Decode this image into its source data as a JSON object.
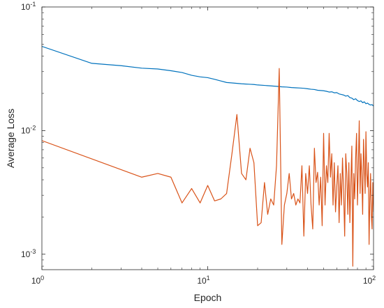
{
  "chart_data": {
    "type": "line",
    "title": "",
    "xlabel": "Epoch",
    "ylabel": "Average Loss",
    "xscale": "log",
    "yscale": "log",
    "xlim": [
      1,
      100
    ],
    "ylim": [
      0.00075,
      0.1
    ],
    "grid": false,
    "legend": "none",
    "x_ticks": [
      {
        "value": 1,
        "base": "10",
        "exp": "0"
      },
      {
        "value": 10,
        "base": "10",
        "exp": "1"
      },
      {
        "value": 100,
        "base": "10",
        "exp": "2"
      }
    ],
    "y_ticks": [
      {
        "value": 0.001,
        "base": "10",
        "exp": "-3"
      },
      {
        "value": 0.01,
        "base": "10",
        "exp": "-2"
      },
      {
        "value": 0.1,
        "base": "10",
        "exp": "-1"
      }
    ],
    "series": [
      {
        "color": "#0072BD",
        "x": [
          1,
          2,
          3,
          4,
          5,
          6,
          7,
          8,
          9,
          10,
          11,
          12,
          13,
          14,
          15,
          16,
          17,
          18,
          19,
          20,
          22,
          24,
          26,
          28,
          30,
          32,
          34,
          36,
          38,
          40,
          42,
          44,
          46,
          48,
          50,
          52,
          54,
          56,
          58,
          60,
          62,
          64,
          66,
          68,
          70,
          72,
          74,
          76,
          78,
          80,
          82,
          84,
          86,
          88,
          90,
          92,
          94,
          96,
          98,
          100
        ],
        "values": [
          0.048,
          0.035,
          0.0335,
          0.032,
          0.0315,
          0.0305,
          0.0295,
          0.028,
          0.0272,
          0.0268,
          0.026,
          0.0252,
          0.0245,
          0.0243,
          0.0241,
          0.0239,
          0.0238,
          0.0237,
          0.0236,
          0.0234,
          0.0232,
          0.023,
          0.0228,
          0.0226,
          0.0225,
          0.0223,
          0.0222,
          0.0221,
          0.022,
          0.0218,
          0.0216,
          0.0215,
          0.0212,
          0.0211,
          0.021,
          0.0208,
          0.0205,
          0.0206,
          0.0202,
          0.0203,
          0.0198,
          0.0196,
          0.0194,
          0.019,
          0.0192,
          0.0185,
          0.0183,
          0.0178,
          0.0181,
          0.0175,
          0.0172,
          0.0174,
          0.0168,
          0.0171,
          0.0165,
          0.0167,
          0.0163,
          0.0161,
          0.0162,
          0.0158
        ]
      },
      {
        "color": "#D95319",
        "x": [
          1,
          4,
          5,
          6,
          7,
          8,
          9,
          10,
          11,
          12,
          13,
          14,
          15,
          16,
          17,
          18,
          19,
          20,
          21,
          22,
          23,
          24,
          25,
          26,
          27,
          28,
          29,
          30,
          31,
          32,
          33,
          34,
          35,
          36,
          37,
          38,
          39,
          40,
          41,
          42,
          43,
          44,
          45,
          46,
          47,
          48,
          49,
          50,
          51,
          52,
          53,
          54,
          55,
          56,
          57,
          58,
          59,
          60,
          61,
          62,
          63,
          64,
          65,
          66,
          67,
          68,
          69,
          70,
          71,
          72,
          73,
          74,
          75,
          76,
          77,
          78,
          79,
          80,
          81,
          82,
          83,
          84,
          85,
          86,
          87,
          88,
          89,
          90,
          91,
          92,
          93,
          94,
          95,
          96,
          97,
          98,
          99,
          100
        ],
        "values": [
          0.0083,
          0.0042,
          0.0045,
          0.0042,
          0.0026,
          0.0034,
          0.0026,
          0.0036,
          0.0027,
          0.0028,
          0.0031,
          0.0065,
          0.0135,
          0.0045,
          0.004,
          0.0072,
          0.0055,
          0.0017,
          0.0018,
          0.0038,
          0.0021,
          0.0028,
          0.0025,
          0.0052,
          0.0318,
          0.0012,
          0.0025,
          0.0031,
          0.0045,
          0.0028,
          0.0031,
          0.0025,
          0.0028,
          0.0026,
          0.0052,
          0.0014,
          0.0045,
          0.0031,
          0.0052,
          0.0025,
          0.0016,
          0.0072,
          0.0038,
          0.0046,
          0.0025,
          0.0042,
          0.0017,
          0.0095,
          0.0025,
          0.0052,
          0.0038,
          0.0095,
          0.0042,
          0.0065,
          0.0025,
          0.0055,
          0.0022,
          0.0035,
          0.0052,
          0.0018,
          0.0045,
          0.0025,
          0.006,
          0.0032,
          0.0014,
          0.0065,
          0.0045,
          0.0021,
          0.0055,
          0.0018,
          0.0038,
          0.0075,
          0.0008,
          0.0045,
          0.0028,
          0.006,
          0.0095,
          0.0025,
          0.0052,
          0.012,
          0.0031,
          0.0065,
          0.0042,
          0.0021,
          0.0085,
          0.0052,
          0.0031,
          0.0098,
          0.0045,
          0.0035,
          0.0055,
          0.0012,
          0.0028,
          0.0045,
          0.0021,
          0.0016,
          0.0038,
          0.0022
        ]
      }
    ]
  }
}
